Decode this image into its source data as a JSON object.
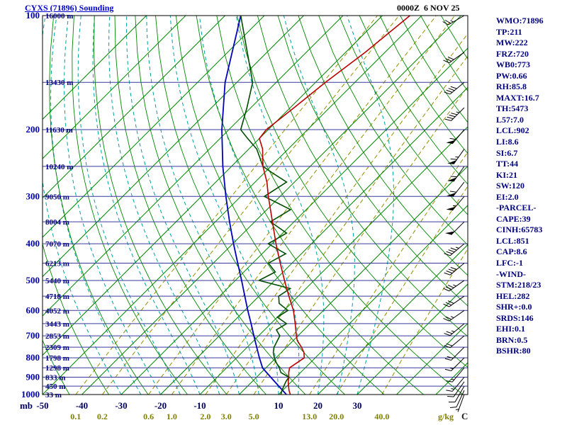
{
  "header": {
    "title": "CYXS (71896) Sounding",
    "datetime": "0000Z  6 NOV 25"
  },
  "axes": {
    "pressure_unit_label": "mb",
    "temp_unit_label": "C",
    "mixing_unit_label": "g/kg",
    "pressure_tick_labels": [
      100,
      200,
      300,
      400,
      500,
      600,
      700,
      800,
      900,
      1000
    ],
    "temp_tick_labels": [
      -50,
      -40,
      -30,
      -20,
      -10,
      10,
      20,
      30
    ],
    "mixing_tick_labels": [
      "0.1",
      "0.2",
      "0.6",
      "1.0",
      "2.0",
      "3.0",
      "5.0",
      "13.0",
      "20.0",
      "40.0"
    ],
    "height_labels": [
      {
        "p": 100,
        "label": "16000 m"
      },
      {
        "p": 150,
        "label": "13430 m"
      },
      {
        "p": 200,
        "label": "11630 m"
      },
      {
        "p": 250,
        "label": "10240 m"
      },
      {
        "p": 300,
        "label": "9050 m"
      },
      {
        "p": 350,
        "label": "8004 m"
      },
      {
        "p": 400,
        "label": "7070 m"
      },
      {
        "p": 450,
        "label": "6213 m"
      },
      {
        "p": 500,
        "label": "5440 m"
      },
      {
        "p": 550,
        "label": "4718 m"
      },
      {
        "p": 600,
        "label": "4052 m"
      },
      {
        "p": 650,
        "label": "3443 m"
      },
      {
        "p": 700,
        "label": "2853 m"
      },
      {
        "p": 750,
        "label": "2309 m"
      },
      {
        "p": 800,
        "label": "1798 m"
      },
      {
        "p": 850,
        "label": "1298 m"
      },
      {
        "p": 900,
        "label": "833 m"
      },
      {
        "p": 950,
        "label": "450 m"
      },
      {
        "p": 1000,
        "label": "33 m"
      }
    ]
  },
  "stats_panel": {
    "lines": [
      "WMO:71896",
      "TP:211",
      "MW:222",
      "FRZ:720",
      "WB0:773",
      "PW:0.66",
      "RH:85.8",
      "MAXT:16.7",
      "TH:5473",
      "L57:7.0",
      "LCL:902",
      "LI:8.6",
      "SI:6.7",
      "TT:44",
      "KI:21",
      "SW:120",
      "EI:2.0",
      "-PARCEL-",
      "CAPE:39",
      "CINH:65783",
      "LCL:851",
      "CAP:8.6",
      "LFC:-1",
      "-WIND-",
      "STM:218/23",
      "HEL:282",
      "SHR+:0.0",
      "SRDS:146",
      "EHI:0.1",
      "BRN:0.5",
      "BSHR:80"
    ]
  },
  "chart_data": {
    "type": "skewt-log-p",
    "station": "CYXS (71896)",
    "valid": "0000Z 6 NOV 25",
    "pressure_axis": {
      "min": 100,
      "max": 1000,
      "scale": "log",
      "unit": "mb"
    },
    "temp_axis": {
      "min_at_surface": -50,
      "step": 10,
      "unit": "C",
      "skewed": true
    },
    "isotherms_c": {
      "min": -120,
      "max": 50,
      "step": 10
    },
    "dry_adiabats_theta_k": {
      "min": 230,
      "max": 440,
      "step": 10
    },
    "moist_adiabats_start_c": {
      "min": -30,
      "max": 30,
      "step": 5
    },
    "mixing_ratio_lines_gkg": [
      0.1,
      0.2,
      0.6,
      1.0,
      2.0,
      3.0,
      5.0,
      13.0,
      20.0,
      40.0
    ],
    "temperature_profile": [
      [
        1000,
        13.0
      ],
      [
        975,
        11.6
      ],
      [
        950,
        10.4
      ],
      [
        925,
        9.2
      ],
      [
        900,
        8.2
      ],
      [
        875,
        7.0
      ],
      [
        850,
        6.0
      ],
      [
        825,
        6.6
      ],
      [
        800,
        7.2
      ],
      [
        775,
        5.8
      ],
      [
        750,
        3.8
      ],
      [
        720,
        1.0
      ],
      [
        700,
        -0.4
      ],
      [
        650,
        -3.8
      ],
      [
        600,
        -7.6
      ],
      [
        550,
        -12.4
      ],
      [
        500,
        -17.5
      ],
      [
        450,
        -23.0
      ],
      [
        400,
        -29.0
      ],
      [
        350,
        -35.5
      ],
      [
        300,
        -43.0
      ],
      [
        275,
        -47.0
      ],
      [
        250,
        -52.0
      ],
      [
        225,
        -56.5
      ],
      [
        211,
        -60.0
      ],
      [
        200,
        -60.5
      ],
      [
        175,
        -59.0
      ],
      [
        150,
        -57.5
      ],
      [
        125,
        -55.0
      ],
      [
        100,
        -53.0
      ]
    ],
    "dewpoint_profile": [
      [
        1000,
        10.6
      ],
      [
        975,
        9.8
      ],
      [
        950,
        9.2
      ],
      [
        925,
        8.6
      ],
      [
        900,
        8.2
      ],
      [
        875,
        5.0
      ],
      [
        850,
        3.4
      ],
      [
        825,
        1.4
      ],
      [
        800,
        -0.4
      ],
      [
        775,
        -2.0
      ],
      [
        750,
        -3.2
      ],
      [
        700,
        -4.6
      ],
      [
        675,
        -7.0
      ],
      [
        650,
        -6.0
      ],
      [
        625,
        -10.0
      ],
      [
        600,
        -9.0
      ],
      [
        575,
        -13.0
      ],
      [
        550,
        -15.0
      ],
      [
        525,
        -14.0
      ],
      [
        500,
        -24.0
      ],
      [
        475,
        -22.0
      ],
      [
        450,
        -26.0
      ],
      [
        425,
        -24.0
      ],
      [
        400,
        -31.0
      ],
      [
        375,
        -29.0
      ],
      [
        350,
        -36.0
      ],
      [
        325,
        -34.0
      ],
      [
        300,
        -44.0
      ],
      [
        275,
        -42.0
      ],
      [
        260,
        -48.0
      ],
      [
        250,
        -52.0
      ],
      [
        225,
        -58.0
      ],
      [
        211,
        -63.0
      ],
      [
        200,
        -67.0
      ],
      [
        175,
        -71.0
      ],
      [
        150,
        -76.0
      ],
      [
        125,
        -85.0
      ],
      [
        100,
        -96.0
      ]
    ],
    "parcel_profile": [
      [
        1000,
        12.0
      ],
      [
        950,
        7.9
      ],
      [
        900,
        3.6
      ],
      [
        851,
        -0.8
      ],
      [
        800,
        -4.2
      ],
      [
        750,
        -7.6
      ],
      [
        700,
        -11.2
      ],
      [
        650,
        -15.0
      ],
      [
        600,
        -19.2
      ],
      [
        550,
        -23.6
      ],
      [
        500,
        -28.4
      ],
      [
        450,
        -33.8
      ],
      [
        400,
        -39.8
      ],
      [
        350,
        -46.4
      ],
      [
        300,
        -53.8
      ],
      [
        250,
        -62.2
      ],
      [
        200,
        -71.8
      ],
      [
        150,
        -83.0
      ],
      [
        100,
        -96.0
      ]
    ],
    "wind_barbs": [
      {
        "p": 1000,
        "dir": 200,
        "spd": 8
      },
      {
        "p": 975,
        "dir": 205,
        "spd": 10
      },
      {
        "p": 950,
        "dir": 210,
        "spd": 12
      },
      {
        "p": 925,
        "dir": 215,
        "spd": 12
      },
      {
        "p": 900,
        "dir": 220,
        "spd": 15
      },
      {
        "p": 850,
        "dir": 220,
        "spd": 15
      },
      {
        "p": 800,
        "dir": 225,
        "spd": 18
      },
      {
        "p": 750,
        "dir": 225,
        "spd": 20
      },
      {
        "p": 700,
        "dir": 230,
        "spd": 20
      },
      {
        "p": 650,
        "dir": 230,
        "spd": 25
      },
      {
        "p": 600,
        "dir": 235,
        "spd": 25
      },
      {
        "p": 550,
        "dir": 235,
        "spd": 30
      },
      {
        "p": 500,
        "dir": 235,
        "spd": 35
      },
      {
        "p": 450,
        "dir": 230,
        "spd": 40
      },
      {
        "p": 400,
        "dir": 230,
        "spd": 45
      },
      {
        "p": 350,
        "dir": 225,
        "spd": 50
      },
      {
        "p": 300,
        "dir": 220,
        "spd": 55
      },
      {
        "p": 275,
        "dir": 218,
        "spd": 60
      },
      {
        "p": 250,
        "dir": 215,
        "spd": 60
      },
      {
        "p": 225,
        "dir": 215,
        "spd": 65
      },
      {
        "p": 200,
        "dir": 220,
        "spd": 60
      },
      {
        "p": 175,
        "dir": 225,
        "spd": 45
      },
      {
        "p": 150,
        "dir": 230,
        "spd": 40
      },
      {
        "p": 125,
        "dir": 235,
        "spd": 30
      },
      {
        "p": 100,
        "dir": 240,
        "spd": 25
      }
    ],
    "colors": {
      "temperature": "#bb0000",
      "dewpoint": "#004d00",
      "parcel": "#0000bb",
      "isotherm": "#008800",
      "dry_adiabat": "#008800",
      "moist_adiabat": "#00a0a0",
      "mixing_ratio": "#909000",
      "pressure_line": "#3a3a9a",
      "frame": "#000000",
      "barb": "#000000",
      "pressure_labels": "#0000aa",
      "height_labels": "#000080",
      "temp_labels": "#000060",
      "mixing_labels": "#808000",
      "stats_text": "#000080",
      "title": "#0000cc"
    }
  }
}
